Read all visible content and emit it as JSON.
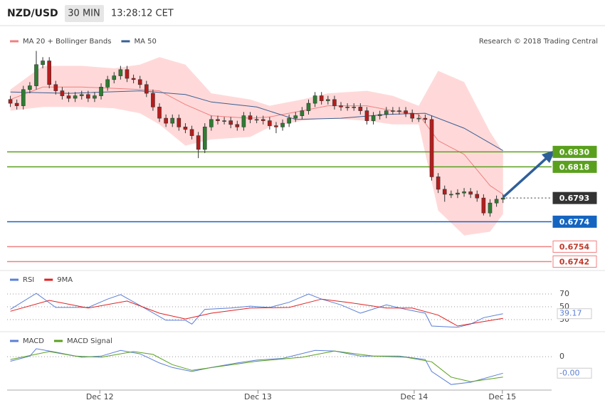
{
  "header": {
    "pair": "NZD/USD",
    "timeframe": "30 MIN",
    "time": "13:28:12 CET"
  },
  "chart_data": [
    {
      "type": "candlestick",
      "source": "Research © 2018 Trading Central",
      "xlim": [
        -0.5,
        83.5
      ],
      "ylim": [
        0.6736,
        0.6929
      ],
      "up_color": "#2e7d32",
      "down_color": "#b71c1c",
      "open": [
        0.6872,
        0.6869,
        0.6867,
        0.688,
        0.6883,
        0.69,
        0.6903,
        0.6884,
        0.6879,
        0.6875,
        0.6873,
        0.6875,
        0.6876,
        0.6873,
        0.6875,
        0.6882,
        0.6888,
        0.6891,
        0.6896,
        0.6889,
        0.6888,
        0.6884,
        0.6877,
        0.6866,
        0.6857,
        0.6853,
        0.6857,
        0.685,
        0.6848,
        0.6843,
        0.6832,
        0.685,
        0.6856,
        0.6855,
        0.6855,
        0.6852,
        0.685,
        0.6859,
        0.6856,
        0.6856,
        0.6855,
        0.6851,
        0.685,
        0.6853,
        0.6857,
        0.6859,
        0.6863,
        0.6869,
        0.6875,
        0.6871,
        0.6872,
        0.6867,
        0.6866,
        0.6866,
        0.6866,
        0.6863,
        0.6855,
        0.6859,
        0.686,
        0.6863,
        0.6863,
        0.6863,
        0.6861,
        0.6857,
        0.6857,
        0.6856,
        0.681,
        0.68,
        0.6796,
        0.6796,
        0.6797,
        0.6798,
        0.6796,
        0.6793,
        0.6781,
        0.6789,
        0.6792
      ],
      "high": [
        0.6875,
        0.6872,
        0.6883,
        0.6886,
        0.6911,
        0.6906,
        0.6906,
        0.6887,
        0.6882,
        0.6878,
        0.6878,
        0.6879,
        0.6879,
        0.6878,
        0.6885,
        0.6891,
        0.6894,
        0.6899,
        0.6899,
        0.6892,
        0.6891,
        0.6887,
        0.688,
        0.6869,
        0.686,
        0.686,
        0.686,
        0.6853,
        0.6851,
        0.6846,
        0.6853,
        0.6859,
        0.6859,
        0.6858,
        0.6858,
        0.6855,
        0.6862,
        0.6862,
        0.6859,
        0.6859,
        0.6858,
        0.6854,
        0.6856,
        0.686,
        0.6862,
        0.6866,
        0.6872,
        0.6878,
        0.6878,
        0.6875,
        0.6875,
        0.687,
        0.6869,
        0.6869,
        0.6869,
        0.6866,
        0.6862,
        0.6863,
        0.6866,
        0.6866,
        0.6866,
        0.6866,
        0.6864,
        0.686,
        0.686,
        0.6859,
        0.6813,
        0.6803,
        0.6799,
        0.68,
        0.6801,
        0.6801,
        0.6799,
        0.6796,
        0.6792,
        0.6795,
        0.6796
      ],
      "low": [
        0.6866,
        0.6864,
        0.6864,
        0.6877,
        0.688,
        0.6897,
        0.6881,
        0.6876,
        0.6872,
        0.687,
        0.687,
        0.6872,
        0.687,
        0.687,
        0.6872,
        0.6879,
        0.6885,
        0.6888,
        0.6886,
        0.6885,
        0.6881,
        0.6874,
        0.6863,
        0.6854,
        0.685,
        0.685,
        0.6847,
        0.6845,
        0.684,
        0.6825,
        0.6829,
        0.6847,
        0.6852,
        0.6852,
        0.6849,
        0.6847,
        0.6847,
        0.6853,
        0.6853,
        0.6852,
        0.6848,
        0.6845,
        0.6847,
        0.685,
        0.6854,
        0.6856,
        0.686,
        0.6866,
        0.6868,
        0.6868,
        0.6864,
        0.6863,
        0.6863,
        0.6863,
        0.686,
        0.6852,
        0.6852,
        0.6856,
        0.6857,
        0.686,
        0.686,
        0.6858,
        0.6854,
        0.6854,
        0.6853,
        0.6807,
        0.6797,
        0.679,
        0.6793,
        0.6793,
        0.6794,
        0.6793,
        0.679,
        0.6779,
        0.6778,
        0.6786,
        0.6789
      ],
      "close": [
        0.6869,
        0.6867,
        0.688,
        0.6883,
        0.69,
        0.6903,
        0.6884,
        0.6879,
        0.6875,
        0.6873,
        0.6875,
        0.6876,
        0.6873,
        0.6875,
        0.6882,
        0.6888,
        0.6891,
        0.6896,
        0.6889,
        0.6888,
        0.6884,
        0.6877,
        0.6866,
        0.6857,
        0.6853,
        0.6857,
        0.685,
        0.6848,
        0.6843,
        0.6832,
        0.685,
        0.6856,
        0.6855,
        0.6855,
        0.6852,
        0.685,
        0.6859,
        0.6856,
        0.6856,
        0.6855,
        0.6851,
        0.685,
        0.6853,
        0.6857,
        0.6859,
        0.6863,
        0.6869,
        0.6875,
        0.6871,
        0.6872,
        0.6867,
        0.6866,
        0.6866,
        0.6866,
        0.6863,
        0.6855,
        0.6859,
        0.686,
        0.6863,
        0.6863,
        0.6863,
        0.6861,
        0.6857,
        0.6857,
        0.6856,
        0.681,
        0.68,
        0.6796,
        0.6796,
        0.6797,
        0.6798,
        0.6796,
        0.6793,
        0.6781,
        0.6789,
        0.6792,
        0.6793
      ],
      "series": [
        {
          "name": "MA 20 + Bollinger Bands",
          "color": "#f08080",
          "band_color": "#ffd9d9",
          "x": [
            0,
            5,
            11,
            16,
            20,
            23,
            27,
            31,
            37,
            40,
            45,
            49,
            55,
            59,
            63,
            66,
            70,
            74,
            76
          ],
          "values": [
            0.6872,
            0.6882,
            0.6882,
            0.6881,
            0.688,
            0.6879,
            0.6868,
            0.6859,
            0.6857,
            0.6858,
            0.6863,
            0.6867,
            0.6867,
            0.6863,
            0.686,
            0.6839,
            0.6828,
            0.6803,
            0.6796
          ],
          "upper": [
            0.688,
            0.6899,
            0.6899,
            0.6897,
            0.69,
            0.6906,
            0.69,
            0.6877,
            0.6872,
            0.6867,
            0.6872,
            0.6877,
            0.6879,
            0.6875,
            0.6867,
            0.6895,
            0.6886,
            0.6846,
            0.683
          ],
          "lower": [
            0.6863,
            0.6866,
            0.6866,
            0.6865,
            0.6861,
            0.6852,
            0.6835,
            0.684,
            0.6842,
            0.685,
            0.6855,
            0.6857,
            0.6855,
            0.6852,
            0.6852,
            0.6783,
            0.6763,
            0.6766,
            0.678
          ]
        },
        {
          "name": "MA 50",
          "color": "#3a5f95",
          "x": [
            0,
            9,
            20,
            27,
            31,
            38,
            44,
            51,
            58,
            64,
            70,
            76
          ],
          "values": [
            0.6878,
            0.6877,
            0.6879,
            0.6876,
            0.687,
            0.6866,
            0.6856,
            0.6857,
            0.686,
            0.6861,
            0.6849,
            0.6831
          ]
        }
      ],
      "levels": [
        {
          "price": {
            "value": 0.683,
            "label": "0.6830"
          },
          "color": "#5aa01e",
          "style": "solid",
          "label_style": "filled"
        },
        {
          "price": 0.6818,
          "color": "#5aa01e",
          "style": "solid",
          "label_style": "filled"
        },
        {
          "price": 0.6793,
          "color": "#333333",
          "style": "dotted",
          "label_style": "filled"
        },
        {
          "price": 0.6774,
          "color": "#1565c0",
          "style": "solid",
          "label_style": "filled"
        },
        {
          "price": 0.6754,
          "color": "#f08080",
          "style": "solid",
          "label_style": "outlined"
        },
        {
          "price": 0.6742,
          "color": "#f08080",
          "style": "solid",
          "label_style": "outlined"
        }
      ]
    },
    {
      "type": "line",
      "xlim": [
        -0.5,
        83.5
      ],
      "ylim": [
        10,
        100
      ],
      "yticks": [
        70,
        50,
        30
      ],
      "series": [
        {
          "name": "RSI",
          "color": "#5b7fd6",
          "label_last": true,
          "x": [
            0,
            4,
            7,
            12,
            15,
            17,
            20,
            24,
            27,
            28,
            30,
            34,
            37,
            40,
            43,
            46,
            48,
            51,
            54,
            58,
            61,
            64,
            65,
            69,
            71,
            73,
            76
          ],
          "values": [
            46,
            71,
            49,
            49,
            62,
            69,
            52,
            29,
            29,
            23,
            46,
            48,
            51,
            49,
            57,
            70,
            62,
            53,
            40,
            53,
            46,
            40,
            20,
            18,
            23,
            33,
            39.17
          ]
        },
        {
          "name": "9MA",
          "color": "#e02020",
          "x": [
            0,
            6,
            12,
            18,
            23,
            27,
            31,
            37,
            43,
            48,
            52,
            58,
            62,
            66,
            69,
            73,
            76
          ],
          "values": [
            43,
            60,
            48,
            59,
            40,
            31,
            40,
            48,
            49,
            62,
            57,
            48,
            48,
            37,
            20,
            27,
            32
          ]
        }
      ]
    },
    {
      "type": "line",
      "xlim": [
        -0.5,
        83.5
      ],
      "ylim": [
        -0.00055,
        0.00039
      ],
      "yticks": [
        0
      ],
      "xticks": [
        {
          "value": 13.8,
          "label": "Dec 12"
        },
        {
          "value": 38.2,
          "label": "Dec 13"
        },
        {
          "value": 62.3,
          "label": "Dec 14"
        },
        {
          "value": 75.9,
          "label": "Dec 15"
        }
      ],
      "series": [
        {
          "name": "MACD",
          "color": "#5b7fd6",
          "x": [
            0,
            3,
            4,
            7,
            11,
            14,
            17,
            20,
            23,
            25,
            28,
            31,
            35,
            38,
            42,
            47,
            50,
            54,
            60,
            64,
            65,
            68,
            71,
            76
          ],
          "values": [
            -8e-05,
            1e-05,
            0.00014,
            8e-05,
            -1e-05,
            1e-05,
            0.00011,
            5e-05,
            -0.00011,
            -0.00019,
            -0.00026,
            -0.00019,
            -0.00011,
            -6e-05,
            -3e-05,
            0.00011,
            0.0001,
            1e-05,
            1e-05,
            -5e-05,
            -0.00026,
            -0.00049,
            -0.00045,
            -0.00029
          ],
          "value_labels": [
            null,
            null,
            null,
            null,
            null,
            null,
            null,
            null,
            null,
            null,
            null,
            null,
            null,
            null,
            null,
            null,
            null,
            null,
            null,
            null,
            null,
            null,
            null,
            "-0.00"
          ]
        },
        {
          "name": "MACD Signal",
          "color": "#5aa01e",
          "x": [
            0,
            6,
            10,
            14,
            19,
            22,
            25,
            28,
            33,
            38,
            45,
            50,
            56,
            61,
            65,
            68,
            71,
            76
          ],
          "values": [
            -5e-05,
            9e-05,
            1e-05,
            -1e-05,
            9e-05,
            4e-05,
            -0.00014,
            -0.00024,
            -0.00016,
            -8e-05,
            -1e-05,
            0.0001,
            1e-05,
            -1e-05,
            -9e-05,
            -0.00036,
            -0.00044,
            -0.00036
          ]
        }
      ]
    }
  ]
}
